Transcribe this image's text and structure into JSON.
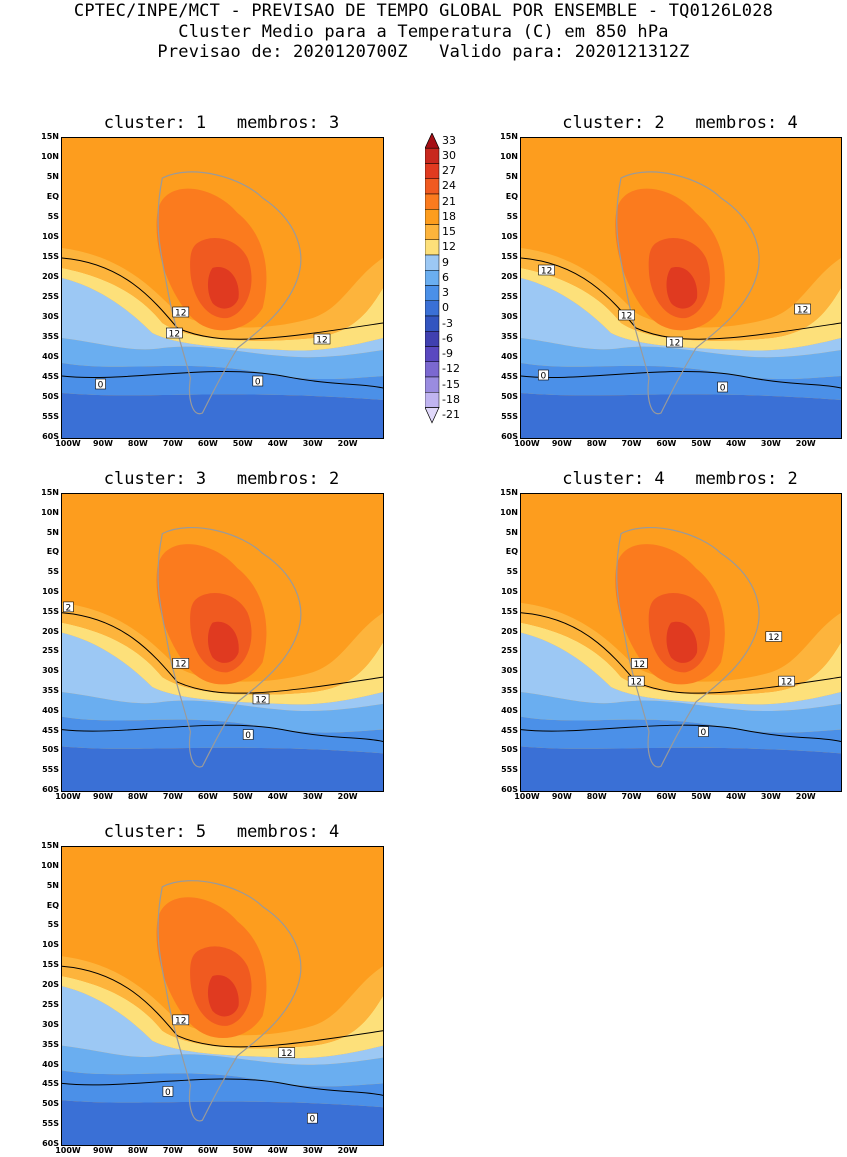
{
  "header": {
    "line1": "CPTEC/INPE/MCT - PREVISAO DE TEMPO GLOBAL POR ENSEMBLE - TQ0126L028",
    "line2": "Cluster Medio para a Temperatura (C) em 850 hPa",
    "line3": "Previsao de: 2020120700Z   Valido para: 2020121312Z"
  },
  "lat_labels": [
    "15N",
    "10N",
    "5N",
    "EQ",
    "5S",
    "10S",
    "15S",
    "20S",
    "25S",
    "30S",
    "35S",
    "40S",
    "45S",
    "50S",
    "55S",
    "60S"
  ],
  "lon_labels": [
    "100W",
    "90W",
    "80W",
    "70W",
    "60W",
    "50W",
    "40W",
    "30W",
    "20W"
  ],
  "colorbar": {
    "levels": [
      "33",
      "30",
      "27",
      "24",
      "21",
      "18",
      "15",
      "12",
      "9",
      "6",
      "3",
      "0",
      "-3",
      "-6",
      "-9",
      "-12",
      "-15",
      "-18",
      "-21"
    ],
    "colors": [
      "#a50f15",
      "#c8281e",
      "#e03a20",
      "#f05a20",
      "#fb7b1e",
      "#fd9d1e",
      "#fdb43c",
      "#fde07a",
      "#9cc8f4",
      "#6aaef0",
      "#4b90e8",
      "#3a70d6",
      "#3355c0",
      "#4040b0",
      "#5a48c0",
      "#7b68d0",
      "#9a8ce0",
      "#c0b4f0",
      "#e0d8fa"
    ]
  },
  "panels": [
    {
      "title": "cluster: 1   membros: 3",
      "labels": [
        "12",
        "12",
        "12",
        "0",
        "0"
      ]
    },
    {
      "title": "cluster: 2   membros: 4",
      "labels": [
        "12",
        "12",
        "12",
        "12",
        "0",
        "0"
      ]
    },
    {
      "title": "cluster: 3   membros: 2",
      "labels": [
        "2",
        "12",
        "12",
        "0"
      ]
    },
    {
      "title": "cluster: 4   membros: 2",
      "labels": [
        "12",
        "12",
        "12",
        "12",
        "0"
      ]
    },
    {
      "title": "cluster: 5   membros: 4",
      "labels": [
        "12",
        "12",
        "0",
        "0"
      ]
    }
  ],
  "palette": {
    "orange": "#fd9d1e",
    "orange_dark": "#fb7b1e",
    "red": "#f05a20",
    "red_dark": "#e03a20",
    "yellow_light": "#fde07a",
    "yellow": "#fdb43c",
    "blue_light": "#9cc8f4",
    "blue": "#6aaef0",
    "blue_mid": "#4b90e8",
    "blue_dark": "#3a70d6",
    "purple": "#5a48c0"
  }
}
